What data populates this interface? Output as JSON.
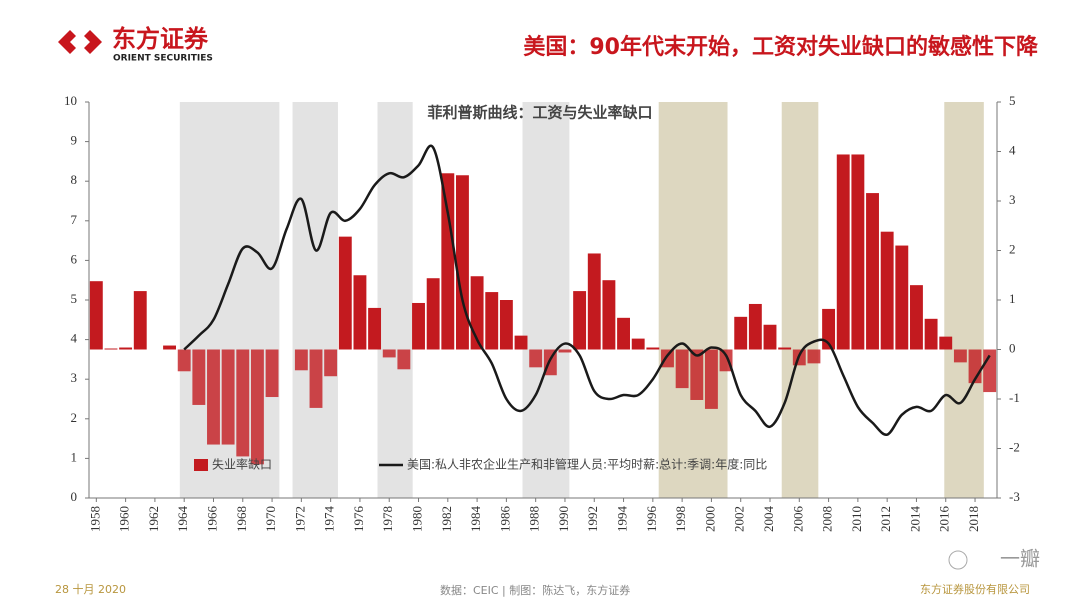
{
  "header": {
    "logo_cn": "东方证券",
    "logo_en": "ORIENT SECURITIES",
    "headline": "美国：90年代末开始，工资对失业缺口的敏感性下降"
  },
  "footer": {
    "date": "28 十月 2020",
    "source": "数据：CEIC | 制图：陈达飞，东方证券",
    "company": "东方证券股份有限公司",
    "watermark": "一瓣"
  },
  "chart_data": {
    "type": "bar-line",
    "title": "菲利普斯曲线：工资与失业率缺口",
    "x": [
      1958,
      1959,
      1960,
      1961,
      1962,
      1963,
      1964,
      1965,
      1966,
      1967,
      1968,
      1969,
      1970,
      1971,
      1972,
      1973,
      1974,
      1975,
      1976,
      1977,
      1978,
      1979,
      1980,
      1981,
      1982,
      1983,
      1984,
      1985,
      1986,
      1987,
      1988,
      1989,
      1990,
      1991,
      1992,
      1993,
      1994,
      1995,
      1996,
      1997,
      1998,
      1999,
      2000,
      2001,
      2002,
      2003,
      2004,
      2005,
      2006,
      2007,
      2008,
      2009,
      2010,
      2011,
      2012,
      2013,
      2014,
      2015,
      2016,
      2017,
      2018,
      2019
    ],
    "xlim": [
      1957.5,
      2019.5
    ],
    "xticks": [
      1958,
      1960,
      1962,
      1964,
      1966,
      1968,
      1970,
      1972,
      1974,
      1976,
      1978,
      1980,
      1982,
      1984,
      1986,
      1988,
      1990,
      1992,
      1994,
      1996,
      1998,
      2000,
      2002,
      2004,
      2006,
      2008,
      2010,
      2012,
      2014,
      2016,
      2018
    ],
    "ylim": [
      0,
      10
    ],
    "yticks": [
      0,
      1,
      2,
      3,
      4,
      5,
      6,
      7,
      8,
      9,
      10
    ],
    "y2lim": [
      -3,
      5
    ],
    "y2ticks": [
      -3,
      -2,
      -1,
      0,
      1,
      2,
      3,
      4,
      5
    ],
    "legend": "lower left",
    "shaded_periods": [
      {
        "from": 1963.7,
        "to": 1970.5,
        "color": "#e3e3e3"
      },
      {
        "from": 1971.4,
        "to": 1974.5,
        "color": "#e3e3e3"
      },
      {
        "from": 1977.2,
        "to": 1979.6,
        "color": "#e3e3e3"
      },
      {
        "from": 1987.1,
        "to": 1990.3,
        "color": "#e3e3e3"
      },
      {
        "from": 1996.4,
        "to": 2001.1,
        "color": "#ddd7c0"
      },
      {
        "from": 2004.8,
        "to": 2007.3,
        "color": "#ddd7c0"
      },
      {
        "from": 2015.9,
        "to": 2018.6,
        "color": "#ddd7c0"
      }
    ],
    "series": [
      {
        "name": "失业率缺口",
        "type": "bar",
        "axis": "y2",
        "color": "#c31a1f",
        "values": [
          1.38,
          0.02,
          0.04,
          1.18,
          0,
          0.08,
          -0.44,
          -1.12,
          -1.92,
          -1.92,
          -2.16,
          -2.32,
          -0.96,
          0,
          -0.42,
          -1.18,
          -0.54,
          2.28,
          1.5,
          0.84,
          -0.16,
          -0.4,
          0.94,
          1.44,
          3.56,
          3.52,
          1.48,
          1.16,
          1.0,
          0.28,
          -0.36,
          -0.52,
          -0.06,
          1.18,
          1.94,
          1.4,
          0.64,
          0.22,
          0.04,
          -0.36,
          -0.78,
          -1.02,
          -1.2,
          -0.44,
          0.66,
          0.92,
          0.5,
          0.04,
          -0.32,
          -0.28,
          0.82,
          3.94,
          3.94,
          3.16,
          2.38,
          2.1,
          1.3,
          0.62,
          0.26,
          -0.26,
          -0.68,
          -0.86
        ]
      },
      {
        "name": "美国:私人非农企业生产和非管理人员:平均时薪:总计:季调:年度:同比",
        "type": "line",
        "axis": "y",
        "color": "#1a1a1a",
        "values": [
          null,
          null,
          null,
          null,
          null,
          null,
          3.75,
          4.1,
          4.5,
          5.4,
          6.3,
          6.2,
          5.8,
          6.8,
          7.55,
          6.25,
          7.2,
          7.0,
          7.3,
          7.9,
          8.2,
          8.1,
          8.4,
          8.85,
          7.2,
          5.0,
          4.0,
          3.4,
          2.5,
          2.2,
          2.6,
          3.5,
          3.9,
          3.6,
          2.7,
          2.5,
          2.6,
          2.6,
          3.0,
          3.6,
          3.9,
          3.6,
          3.8,
          3.6,
          2.6,
          2.2,
          1.8,
          2.4,
          3.6,
          3.95,
          3.9,
          3.1,
          2.3,
          1.9,
          1.6,
          2.1,
          2.3,
          2.2,
          2.6,
          2.4,
          3.0,
          3.6
        ]
      }
    ]
  }
}
